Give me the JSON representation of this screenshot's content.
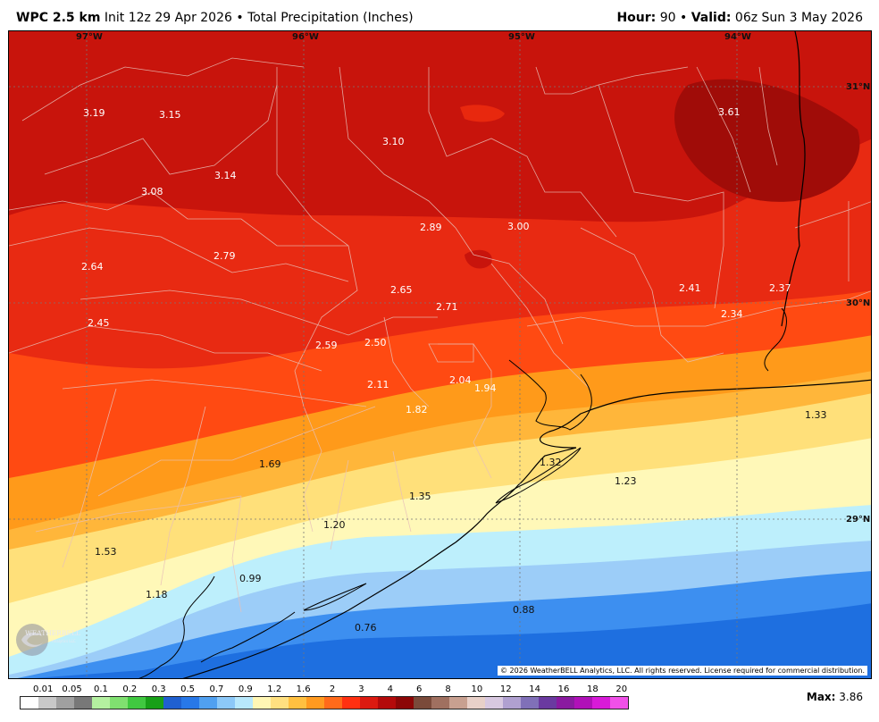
{
  "header": {
    "model": "WPC 2.5 km",
    "init": "Init 12z 29 Apr 2026",
    "bullet": "•",
    "product": "Total Precipitation (Inches)",
    "hour_label": "Hour:",
    "hour_value": "90",
    "valid_label": "Valid:",
    "valid_value": "06z Sun 3 May 2026"
  },
  "map": {
    "lon_labels": [
      "97°W",
      "96°W",
      "95°W",
      "94°W"
    ],
    "lat_labels": [
      "31°N",
      "30°N",
      "29°N"
    ],
    "values": [
      "3.19",
      "3.15",
      "3.10",
      "3.61",
      "3.14",
      "3.08",
      "2.89",
      "3.00",
      "2.64",
      "2.79",
      "2.65",
      "2.71",
      "2.41",
      "2.37",
      "2.34",
      "2.45",
      "2.59",
      "2.50",
      "2.11",
      "2.04",
      "1.94",
      "1.82",
      "1.33",
      "1.69",
      "1.32",
      "1.23",
      "1.35",
      "1.20",
      "1.53",
      "0.99",
      "1.18",
      "0.88",
      "0.76"
    ],
    "copyright": "© 2026 WeatherBELL Analytics, LLC. All rights reserved. License required for commercial distribution.",
    "logo_text": "WEATHERBELL",
    "logo_sub": "Analytics LLC"
  },
  "legend": {
    "labels": [
      "0.01",
      "0.05",
      "0.1",
      "0.2",
      "0.3",
      "0.5",
      "0.7",
      "0.9",
      "1.2",
      "1.6",
      "2",
      "3",
      "4",
      "6",
      "8",
      "10",
      "12",
      "14",
      "16",
      "18",
      "20"
    ],
    "colors": [
      "#ffffff",
      "#c8c8c8",
      "#a0a0a0",
      "#787878",
      "#b4f0a0",
      "#80e070",
      "#40c840",
      "#18a018",
      "#2060d0",
      "#2878e8",
      "#50a0f0",
      "#8cc8f8",
      "#b8e8fc",
      "#fff6b4",
      "#ffe080",
      "#ffc040",
      "#ff9a20",
      "#ff6a1a",
      "#ff3010",
      "#dc1a10",
      "#b40a0a",
      "#8c0606",
      "#7a4a3a",
      "#a07060",
      "#c8a090",
      "#e8d0c8",
      "#d8c8e0",
      "#b0a0d0",
      "#8070b8",
      "#6a3aa0",
      "#8a1aa0",
      "#b010b8",
      "#d81ad8",
      "#f050e8"
    ],
    "max_label": "Max:",
    "max_value": "3.86"
  }
}
